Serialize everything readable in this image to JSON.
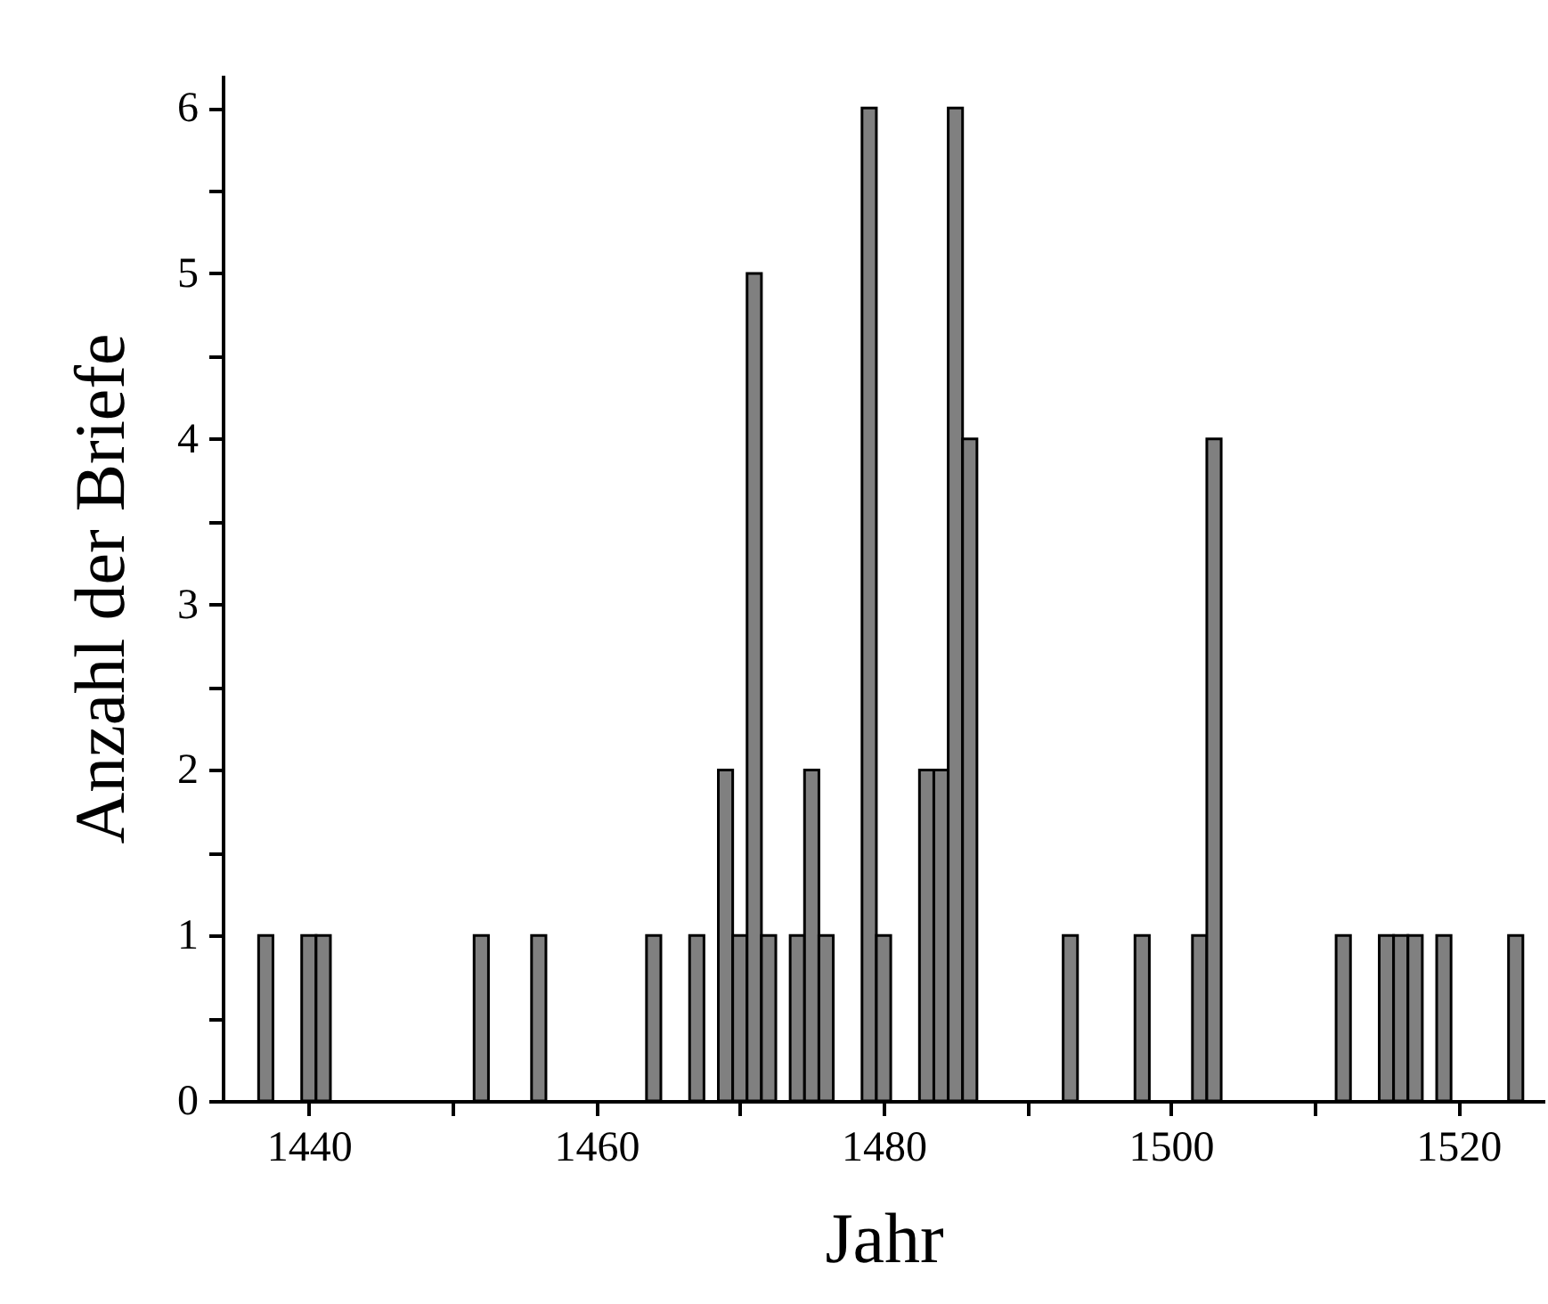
{
  "chart_data": {
    "type": "histogram",
    "xlabel": "Jahr",
    "ylabel": "Anzahl der Briefe",
    "bins": [
      1436.5,
      1437.5,
      1438.5,
      1439.5,
      1440.5,
      1441.5,
      1442.5,
      1443.5,
      1444.5,
      1445.5,
      1446.5,
      1447.5,
      1448.5,
      1449.5,
      1450.5,
      1451.5,
      1452.5,
      1453.5,
      1454.5,
      1455.5,
      1456.5,
      1457.5,
      1458.5,
      1459.5,
      1460.5,
      1461.5,
      1462.5,
      1463.5,
      1464.5,
      1465.5,
      1466.5,
      1467.5,
      1468.5,
      1469.5,
      1470.5,
      1471.5,
      1472.5,
      1473.5,
      1474.5,
      1475.5,
      1476.5,
      1477.5,
      1478.5,
      1479.5,
      1480.5,
      1481.5,
      1482.5,
      1483.5,
      1484.5,
      1485.5,
      1486.5,
      1487.5,
      1488.5,
      1489.5,
      1490.5,
      1491.5,
      1492.5,
      1493.5,
      1494.5,
      1495.5,
      1496.5,
      1497.5,
      1498.5,
      1499.5,
      1500.5,
      1501.5,
      1502.5,
      1503.5,
      1504.5,
      1505.5,
      1506.5,
      1507.5,
      1508.5,
      1509.5,
      1510.5,
      1511.5,
      1512.5,
      1513.5,
      1514.5,
      1515.5,
      1516.5,
      1517.5,
      1518.5,
      1519.5,
      1520.5,
      1521.5,
      1522.5,
      1523.5,
      1524.5
    ],
    "values": [
      1,
      0,
      0,
      1,
      1,
      0,
      0,
      0,
      0,
      0,
      0,
      0,
      0,
      0,
      0,
      1,
      0,
      0,
      0,
      1,
      0,
      0,
      0,
      0,
      0,
      0,
      0,
      1,
      0,
      0,
      1,
      0,
      2,
      1,
      5,
      1,
      0,
      1,
      2,
      1,
      0,
      0,
      6,
      1,
      0,
      0,
      2,
      2,
      6,
      4,
      0,
      0,
      0,
      0,
      0,
      0,
      1,
      0,
      0,
      0,
      0,
      1,
      0,
      0,
      0,
      1,
      4,
      0,
      0,
      0,
      0,
      0,
      0,
      0,
      0,
      1,
      0,
      0,
      1,
      1,
      1,
      0,
      1,
      0,
      0,
      0,
      0,
      1
    ],
    "color": "#808080",
    "xlim": [
      1434,
      1526
    ],
    "xticks": [
      1440,
      {
        "value": 1450,
        "label": null
      },
      1460,
      {
        "value": 1470,
        "label": null
      },
      1480,
      {
        "value": 1490,
        "label": null
      },
      1500,
      {
        "value": 1510,
        "label": null
      },
      1520
    ],
    "ylim": [
      0,
      6.2
    ],
    "yticks": [
      0,
      {
        "value": 0.5,
        "label": null
      },
      1,
      {
        "value": 1.5,
        "label": null
      },
      2,
      {
        "value": 2.5,
        "label": null
      },
      3,
      {
        "value": 3.5,
        "label": null
      },
      4,
      {
        "value": 4.5,
        "label": null
      },
      5,
      {
        "value": 5.5,
        "label": null
      },
      6
    ],
    "grid": false
  }
}
